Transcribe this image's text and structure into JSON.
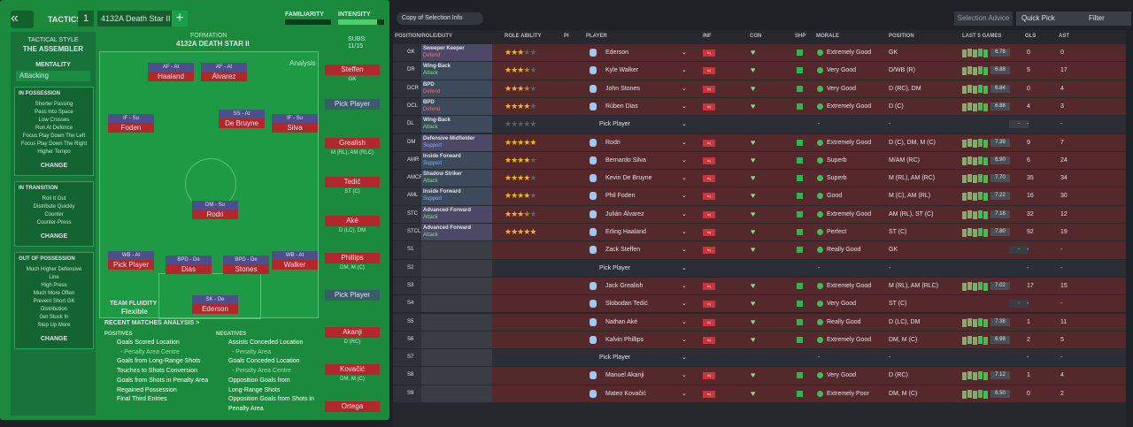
{
  "header": {
    "tab": "TACTICS",
    "slot": "1",
    "tactic": "4132A Death Star II",
    "familiarity": "FAMILIARITY",
    "intensity": "INTENSITY"
  },
  "style": {
    "label": "TACTICAL STYLE",
    "value": "THE ASSEMBLER",
    "mentality_label": "MENTALITY",
    "mentality": "Attacking"
  },
  "instructions": [
    {
      "title": "IN POSSESSION",
      "items": [
        "Shorter Passing",
        "Pass Into Space",
        "Low Crosses",
        "Run At Defence",
        "Focus Play Down The Left",
        "Focus Play Down The Right",
        "Higher Tempo"
      ],
      "button": "CHANGE"
    },
    {
      "title": "IN TRANSITION",
      "items": [
        "Roll It Out",
        "Distribute Quickly",
        "Counter",
        "Counter-Press"
      ],
      "button": "CHANGE"
    },
    {
      "title": "OUT OF POSSESSION",
      "items": [
        "Much Higher Defensive",
        "Line",
        "High Press",
        "Much More Often",
        "Prevent Short GK",
        "Distribution",
        "Get Stuck In",
        "Step Up More"
      ],
      "button": "CHANGE"
    }
  ],
  "formation": {
    "label": "FORMATION",
    "name": "4132A DEATH STAR II",
    "subs_label": "SUBS:",
    "subs": "11/15",
    "analysis": "Analysis",
    "fluidity_label": "TEAM FLUIDITY",
    "fluidity": "Flexible",
    "players": [
      {
        "role": "AF - At",
        "name": "Haaland"
      },
      {
        "role": "AF - At",
        "name": "Álvarez"
      },
      {
        "role": "IF - Su",
        "name": "Foden"
      },
      {
        "role": "SS - At",
        "name": "De Bruyne"
      },
      {
        "role": "IF - Su",
        "name": "Silva"
      },
      {
        "role": "DM - Su",
        "name": "Rodri"
      },
      {
        "role": "WB - At",
        "name": "Pick Player"
      },
      {
        "role": "BPD - De",
        "name": "Dias"
      },
      {
        "role": "BPD - De",
        "name": "Stones"
      },
      {
        "role": "WB - At",
        "name": "Walker"
      },
      {
        "role": "SK - De",
        "name": "Ederson"
      }
    ],
    "bench": [
      {
        "name": "Steffen",
        "position": "GK"
      },
      {
        "name": "Pick Player"
      },
      {
        "name": "Grealish",
        "position": "M (RL), AM (RLC)"
      },
      {
        "name": "Tedić",
        "position": "ST (C)"
      },
      {
        "name": "Aké",
        "position": "D (LC), DM"
      },
      {
        "name": "Phillips",
        "position": "DM, M (C)"
      },
      {
        "name": "Pick Player"
      },
      {
        "name": "Akanji",
        "position": "D (RC)"
      },
      {
        "name": "Kovačić",
        "position": "DM, M (C)"
      },
      {
        "name": "Ortega"
      }
    ]
  },
  "analysis": {
    "title": "RECENT MATCHES ANALYSIS >",
    "positives_label": "POSITIVES",
    "positives": [
      "Goals Scored Location",
      "- Penalty Area Centre",
      "Goals from Long-Range Shots",
      "Touches to Shots Conversion",
      "Goals from Shots in Penalty Area",
      "Regained Possession",
      "Final Third Entries"
    ],
    "negatives_label": "NEGATIVES",
    "negatives": [
      "Assists Conceded Location",
      "- Penalty Area",
      "Goals Conceded Location",
      "- Penalty Area Centre",
      "Opposition Goals from",
      "Long-Range Shots",
      "Opposition Goals from Shots in",
      "Penalty Area"
    ]
  },
  "toolbar": {
    "view": "Copy of Selection Info",
    "advice": "Selection Advice",
    "quick": "Quick Pick",
    "filter": "Filter"
  },
  "table": {
    "columns": [
      "POSITION/ROLE/DUTY",
      "ROLE ABILITY",
      "PI",
      "PLAYER",
      "INF",
      "CON",
      "SHP",
      "MORALE",
      "POSITION",
      "LAST 5 GAMES",
      "GLS",
      "AST"
    ],
    "rows": [
      {
        "pos": "GK",
        "role": "Sweeper Keeper",
        "duty": "Defend",
        "ability": 3,
        "player": "Ederson",
        "inf": "Inj",
        "morale": "Extremely Good",
        "position": "GK",
        "rating": "6.78",
        "gls": "0",
        "ast": "0"
      },
      {
        "pos": "DR",
        "role": "Wing-Back",
        "duty": "Attack",
        "ability": 3.5,
        "player": "Kyle Walker",
        "inf": "Inj",
        "morale": "Very Good",
        "position": "D/WB (R)",
        "rating": "6.88",
        "gls": "5",
        "ast": "17"
      },
      {
        "pos": "DCR",
        "role": "BPD",
        "duty": "Defend",
        "ability": 3.5,
        "player": "John Stones",
        "inf": "Inj",
        "morale": "Very Good",
        "position": "D (RC), DM",
        "rating": "6.84",
        "gls": "0",
        "ast": "4"
      },
      {
        "pos": "DCL",
        "role": "BPD",
        "duty": "Defend",
        "ability": 4,
        "player": "Rúben Dias",
        "inf": "Inj",
        "morale": "Extremely Good",
        "position": "D (C)",
        "rating": "6.88",
        "gls": "4",
        "ast": "3"
      },
      {
        "pos": "DL",
        "role": "Wing-Back",
        "duty": "Attack",
        "ability": 0,
        "player": "Pick Player",
        "morale": "-",
        "position": "-",
        "rating": "-",
        "gls": "-",
        "ast": "-"
      },
      {
        "pos": "DM",
        "role": "Defensive Midfielder",
        "duty": "Support",
        "ability": 5,
        "player": "Rodri",
        "inf": "Inj",
        "morale": "Extremely Good",
        "position": "D (C), DM, M (C)",
        "rating": "7.38",
        "gls": "9",
        "ast": "7"
      },
      {
        "pos": "AMR",
        "role": "Inside Forward",
        "duty": "Support",
        "ability": 4,
        "player": "Bernardo Silva",
        "inf": "Inj",
        "morale": "Superb",
        "position": "M/AM (RC)",
        "rating": "6.90",
        "gls": "6",
        "ast": "24"
      },
      {
        "pos": "AMCR",
        "role": "Shadow Striker",
        "duty": "Attack",
        "ability": 4,
        "player": "Kevin De Bruyne",
        "inf": "Inj",
        "morale": "Superb",
        "position": "M (RL), AM (RC)",
        "rating": "7.70",
        "gls": "35",
        "ast": "34"
      },
      {
        "pos": "AML",
        "role": "Inside Forward",
        "duty": "Support",
        "ability": 4,
        "player": "Phil Foden",
        "inf": "Inj",
        "morale": "Good",
        "position": "M (C), AM (RL)",
        "rating": "7.22",
        "gls": "16",
        "ast": "30"
      },
      {
        "pos": "STC",
        "role": "Advanced Forward",
        "duty": "Attack",
        "ability": 3.5,
        "player": "Julián Álvarez",
        "inf": "Inj",
        "morale": "Extremely Good",
        "position": "AM (RL), ST (C)",
        "rating": "7.18",
        "gls": "32",
        "ast": "12"
      },
      {
        "pos": "STCL",
        "role": "Advanced Forward",
        "duty": "Attack",
        "ability": 5,
        "player": "Erling Haaland",
        "inf": "Inj",
        "morale": "Perfect",
        "position": "ST (C)",
        "rating": "7.80",
        "gls": "92",
        "ast": "19"
      },
      {
        "pos": "S1",
        "player": "Zack Steffen",
        "inf": "Inj",
        "morale": "Really Good",
        "position": "GK",
        "rating": "-",
        "gls": "-",
        "ast": "-"
      },
      {
        "pos": "S2",
        "player": "Pick Player",
        "morale": "-",
        "position": "-",
        "gls": "-",
        "ast": "-"
      },
      {
        "pos": "S3",
        "player": "Jack Grealish",
        "inf": "Inj",
        "morale": "Extremely Good",
        "position": "M (RL), AM (RLC)",
        "rating": "7.02",
        "gls": "17",
        "ast": "15"
      },
      {
        "pos": "S4",
        "player": "Slobodan Tedić",
        "inf": "Inj",
        "morale": "Very Good",
        "position": "ST (C)",
        "rating": "-",
        "gls": "-",
        "ast": "-"
      },
      {
        "pos": "S5",
        "player": "Nathan Aké",
        "inf": "Inj",
        "morale": "Really Good",
        "position": "D (LC), DM",
        "rating": "7.38",
        "gls": "1",
        "ast": "11"
      },
      {
        "pos": "S6",
        "player": "Kalvin Phillips",
        "inf": "Inj",
        "morale": "Extremely Good",
        "position": "DM, M (C)",
        "rating": "6.98",
        "gls": "2",
        "ast": "5"
      },
      {
        "pos": "S7",
        "player": "Pick Player",
        "morale": "-",
        "position": "-",
        "gls": "-",
        "ast": "-"
      },
      {
        "pos": "S8",
        "player": "Manuel Akanji",
        "inf": "Inj",
        "morale": "Very Good",
        "position": "D (RC)",
        "rating": "7.12",
        "gls": "1",
        "ast": "4"
      },
      {
        "pos": "S9",
        "player": "Mateo Kovačić",
        "inf": "Inj",
        "morale": "Extremely Poor",
        "position": "DM, M (C)",
        "rating": "6.50",
        "gls": "0",
        "ast": "2"
      }
    ]
  }
}
